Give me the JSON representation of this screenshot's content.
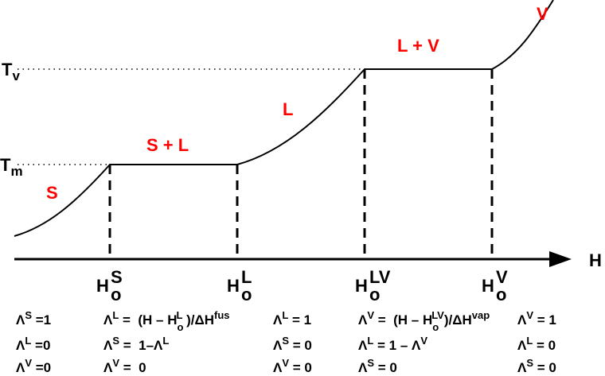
{
  "colors": {
    "curve": "#000000",
    "phase_label": "#ff0000"
  },
  "axis": {
    "label": "H"
  },
  "temperatures": {
    "vap": {
      "base": "T",
      "sub": "v"
    },
    "melt": {
      "base": "T",
      "sub": "m"
    }
  },
  "phases": [
    {
      "label": "S"
    },
    {
      "label": "S + L"
    },
    {
      "label": "L"
    },
    {
      "label": "L + V"
    },
    {
      "label": "V"
    }
  ],
  "enthalpy_marks": [
    {
      "base": "H",
      "sub": "o",
      "sup": "S"
    },
    {
      "base": "H",
      "sub": "o",
      "sup": "L"
    },
    {
      "base": "H",
      "sub": "o",
      "sup": "LV"
    },
    {
      "base": "H",
      "sub": "o",
      "sup": "V"
    }
  ],
  "equation_columns": [
    [
      [
        [
          "Λ",
          ""
        ],
        [
          "S",
          "sup"
        ],
        [
          " =1",
          ""
        ]
      ],
      [
        [
          "Λ",
          ""
        ],
        [
          "L",
          "sup"
        ],
        [
          " =0",
          ""
        ]
      ],
      [
        [
          "Λ",
          ""
        ],
        [
          "V",
          "sup"
        ],
        [
          " =0",
          ""
        ]
      ]
    ],
    [
      [
        [
          "Λ",
          ""
        ],
        [
          "L",
          "sup"
        ],
        [
          " =  (H – H",
          ""
        ],
        [
          "o",
          "sub"
        ],
        [
          "L",
          "sup"
        ],
        [
          " )/ΔH",
          ""
        ],
        [
          "fus",
          "sup"
        ]
      ],
      [
        [
          "Λ",
          ""
        ],
        [
          "S",
          "sup"
        ],
        [
          " =  1–Λ",
          ""
        ],
        [
          "L",
          "sup"
        ]
      ],
      [
        [
          "Λ",
          ""
        ],
        [
          "V",
          "sup"
        ],
        [
          " =  0",
          ""
        ]
      ]
    ],
    [
      [
        [
          "Λ",
          ""
        ],
        [
          "L",
          "sup"
        ],
        [
          " = 1",
          ""
        ]
      ],
      [
        [
          "Λ",
          ""
        ],
        [
          "S",
          "sup"
        ],
        [
          " = 0",
          ""
        ]
      ],
      [
        [
          "Λ",
          ""
        ],
        [
          "V",
          "sup"
        ],
        [
          " = 0",
          ""
        ]
      ]
    ],
    [
      [
        [
          "Λ",
          ""
        ],
        [
          "V",
          "sup"
        ],
        [
          " =  (H – H",
          ""
        ],
        [
          "o",
          "sub"
        ],
        [
          "LV",
          "sup"
        ],
        [
          ")/ΔH",
          ""
        ],
        [
          "vap",
          "sup"
        ]
      ],
      [
        [
          "Λ",
          ""
        ],
        [
          "L",
          "sup"
        ],
        [
          " = 1 – Λ",
          ""
        ],
        [
          "V",
          "sup"
        ]
      ],
      [
        [
          "Λ",
          ""
        ],
        [
          "S",
          "sup"
        ],
        [
          " = 0",
          ""
        ]
      ]
    ],
    [
      [
        [
          "Λ",
          ""
        ],
        [
          "V",
          "sup"
        ],
        [
          " = 1",
          ""
        ]
      ],
      [
        [
          "Λ",
          ""
        ],
        [
          "L",
          "sup"
        ],
        [
          " = 0",
          ""
        ]
      ],
      [
        [
          "Λ",
          ""
        ],
        [
          "S",
          "sup"
        ],
        [
          " = 0",
          ""
        ]
      ]
    ]
  ]
}
